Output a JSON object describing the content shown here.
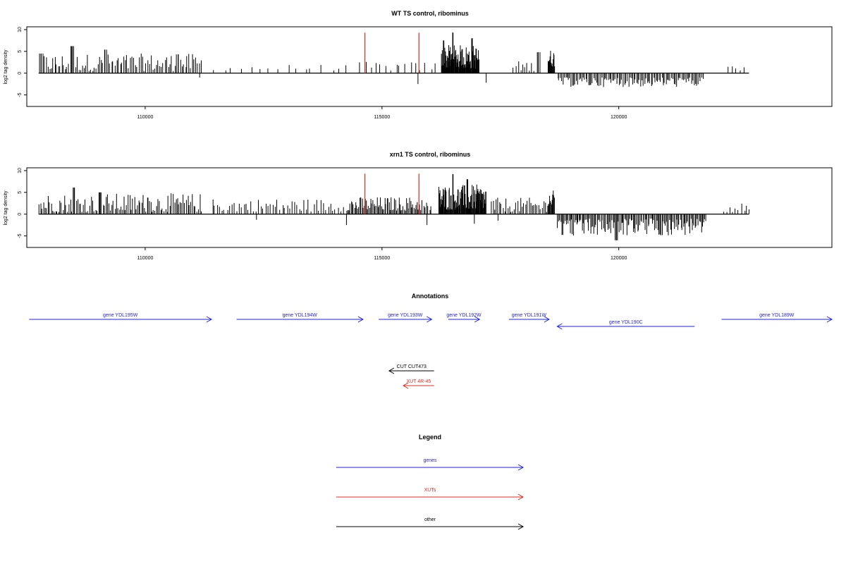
{
  "chart_data": [
    {
      "type": "bar",
      "title": "WT TS control, ribominus",
      "ylabel": "log2 tag density",
      "xlim": [
        107500,
        124500
      ],
      "ylim": [
        -7,
        10
      ],
      "yticks": [
        -5,
        0,
        5,
        10
      ],
      "xticks": [
        110000,
        115000,
        120000
      ],
      "markers": [
        114640,
        115780
      ],
      "marker_color": "#e8281e",
      "bar_color": "#000000",
      "segments": [
        {
          "x0": 107750,
          "x1": 111200,
          "side": "pos",
          "min": 0.5,
          "max": 4.5,
          "peaks": [
            [
              107800,
              4.5
            ],
            [
              108450,
              6.2
            ],
            [
              109150,
              5.4
            ],
            [
              110700,
              4.3
            ]
          ],
          "density": 95
        },
        {
          "x0": 111400,
          "x1": 114400,
          "side": "pos",
          "min": 0.6,
          "max": 2.0,
          "density": 16
        },
        {
          "x0": 114500,
          "x1": 116200,
          "side": "pos",
          "min": 0.5,
          "max": 2.6,
          "density": 16
        },
        {
          "x0": 116250,
          "x1": 117050,
          "side": "pos",
          "min": 1.0,
          "max": 6.5,
          "peaks": [
            [
              116500,
              9.3
            ],
            [
              116300,
              7.5
            ],
            [
              116900,
              8.0
            ]
          ],
          "density": 90
        },
        {
          "x0": 117750,
          "x1": 118350,
          "side": "pos",
          "min": 0.5,
          "max": 2.8,
          "peaks": [
            [
              118300,
              4.8
            ]
          ],
          "density": 12
        },
        {
          "x0": 118500,
          "x1": 118650,
          "side": "pos",
          "min": 1.5,
          "max": 5.5,
          "density": 14
        },
        {
          "x0": 118700,
          "x1": 121800,
          "side": "neg",
          "min": 1.0,
          "max": 3.2,
          "density": 110
        },
        {
          "x0": 122300,
          "x1": 122700,
          "side": "pos",
          "min": 0.5,
          "max": 1.8,
          "density": 5
        },
        {
          "x0": 111150,
          "x1": 111150,
          "side": "neg",
          "min": 1.0,
          "max": 1.0,
          "density": 1
        },
        {
          "x0": 115760,
          "x1": 115760,
          "side": "neg",
          "min": 2.5,
          "max": 2.5,
          "density": 1
        },
        {
          "x0": 117200,
          "x1": 117200,
          "side": "neg",
          "min": 2.2,
          "max": 2.2,
          "density": 1
        }
      ]
    },
    {
      "type": "bar",
      "title": "xrn1 TS control, ribominus",
      "ylabel": "log2 tag density",
      "xlim": [
        107500,
        124500
      ],
      "ylim": [
        -7,
        10
      ],
      "yticks": [
        -5,
        0,
        5,
        10
      ],
      "xticks": [
        110000,
        115000,
        120000
      ],
      "markers": [
        114640,
        115780
      ],
      "marker_color": "#e8281e",
      "bar_color": "#000000",
      "segments": [
        {
          "x0": 107750,
          "x1": 111200,
          "side": "pos",
          "min": 0.5,
          "max": 4.8,
          "peaks": [
            [
              108500,
              6.1
            ],
            [
              109050,
              5.0
            ],
            [
              110050,
              3.8
            ]
          ],
          "density": 110
        },
        {
          "x0": 111400,
          "x1": 114200,
          "side": "pos",
          "min": 0.6,
          "max": 3.6,
          "density": 55
        },
        {
          "x0": 114250,
          "x1": 115850,
          "side": "pos",
          "min": 0.8,
          "max": 4.0,
          "density": 70
        },
        {
          "x0": 115880,
          "x1": 116050,
          "side": "pos",
          "min": 0.5,
          "max": 3.0,
          "density": 6
        },
        {
          "x0": 116200,
          "x1": 117200,
          "side": "pos",
          "min": 1.0,
          "max": 6.8,
          "peaks": [
            [
              116500,
              9.2
            ],
            [
              116800,
              8.0
            ]
          ],
          "density": 100
        },
        {
          "x0": 117300,
          "x1": 118500,
          "side": "pos",
          "min": 0.5,
          "max": 3.8,
          "density": 35
        },
        {
          "x0": 118500,
          "x1": 118650,
          "side": "pos",
          "min": 1.5,
          "max": 5.5,
          "density": 12
        },
        {
          "x0": 118700,
          "x1": 121850,
          "side": "neg",
          "min": 1.0,
          "max": 5.0,
          "peaks": [
            [
              119950,
              6.0
            ]
          ],
          "density": 140
        },
        {
          "x0": 122200,
          "x1": 122800,
          "side": "pos",
          "min": 0.5,
          "max": 2.6,
          "density": 10
        },
        {
          "x0": 112350,
          "x1": 112350,
          "side": "neg",
          "min": 1.3,
          "max": 1.3,
          "density": 1
        },
        {
          "x0": 114250,
          "x1": 114250,
          "side": "neg",
          "min": 2.5,
          "max": 2.5,
          "density": 1
        },
        {
          "x0": 115950,
          "x1": 115950,
          "side": "neg",
          "min": 2.5,
          "max": 2.5,
          "density": 1
        },
        {
          "x0": 116950,
          "x1": 116950,
          "side": "neg",
          "min": 2.2,
          "max": 2.2,
          "density": 1
        },
        {
          "x0": 117450,
          "x1": 117450,
          "side": "neg",
          "min": 1.5,
          "max": 1.5,
          "density": 1
        }
      ]
    }
  ],
  "annotations": {
    "title": "Annotations",
    "features": [
      {
        "label": "gene YDL195W",
        "start": 107550,
        "end": 111400,
        "strand": "+",
        "color": "#1f1fe6",
        "row": 0
      },
      {
        "label": "gene YDL194W",
        "start": 111930,
        "end": 114600,
        "strand": "+",
        "color": "#1f1fe6",
        "row": 0
      },
      {
        "label": "gene YDL193W",
        "start": 114930,
        "end": 116050,
        "strand": "+",
        "color": "#1f1fe6",
        "row": 0
      },
      {
        "label": "gene YDL192W",
        "start": 116400,
        "end": 117060,
        "strand": "+",
        "color": "#1f1fe6",
        "row": 0
      },
      {
        "label": "gene YDL191W",
        "start": 117680,
        "end": 118530,
        "strand": "+",
        "color": "#1f1fe6",
        "row": 0
      },
      {
        "label": "gene YDL190C",
        "start": 118700,
        "end": 121600,
        "strand": "-",
        "color": "#1f1fe6",
        "row": 1
      },
      {
        "label": "gene YDL189W",
        "start": 122170,
        "end": 124500,
        "strand": "+",
        "color": "#1f1fe6",
        "row": 0
      },
      {
        "label": "CUT CUT473",
        "start": 115150,
        "end": 116100,
        "strand": "-",
        "color": "#000000",
        "row": 2
      },
      {
        "label": "XUT 4R-45",
        "start": 115450,
        "end": 116100,
        "strand": "-",
        "color": "#e8281e",
        "row": 3
      }
    ]
  },
  "legend": {
    "title": "Legend",
    "items": [
      {
        "label": "genes",
        "color": "#1f1fe6"
      },
      {
        "label": "XUTs",
        "color": "#e8281e"
      },
      {
        "label": "other",
        "color": "#000000"
      }
    ]
  }
}
